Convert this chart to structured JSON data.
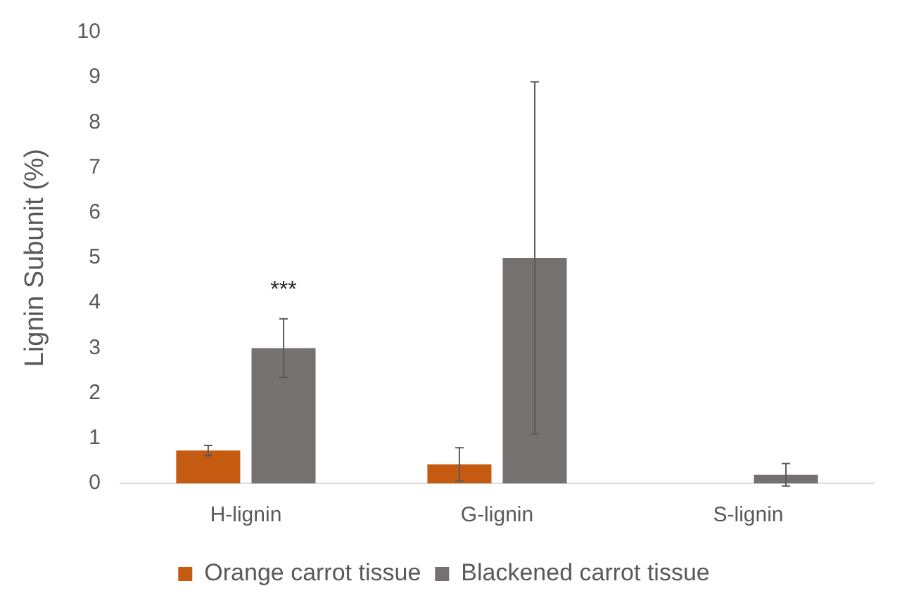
{
  "chart_data": {
    "type": "bar",
    "ylabel": "Lignin Subunit (%)",
    "categories": [
      "H-lignin",
      "G-lignin",
      "S-lignin"
    ],
    "series": [
      {
        "name": "Orange carrot tissue",
        "color": "#c55a11",
        "values": [
          0.73,
          0.42,
          0
        ],
        "errors": [
          0.11,
          0.37,
          null
        ]
      },
      {
        "name": "Blackened carrot tissue",
        "color": "#767171",
        "values": [
          3.0,
          5.0,
          0.19
        ],
        "errors": [
          0.65,
          3.9,
          0.25
        ]
      }
    ],
    "ylim": [
      0,
      10
    ],
    "yticks": [
      0,
      1,
      2,
      3,
      4,
      5,
      6,
      7,
      8,
      9,
      10
    ],
    "grid": false,
    "legend": "bottom",
    "annotations": [
      "***"
    ]
  }
}
